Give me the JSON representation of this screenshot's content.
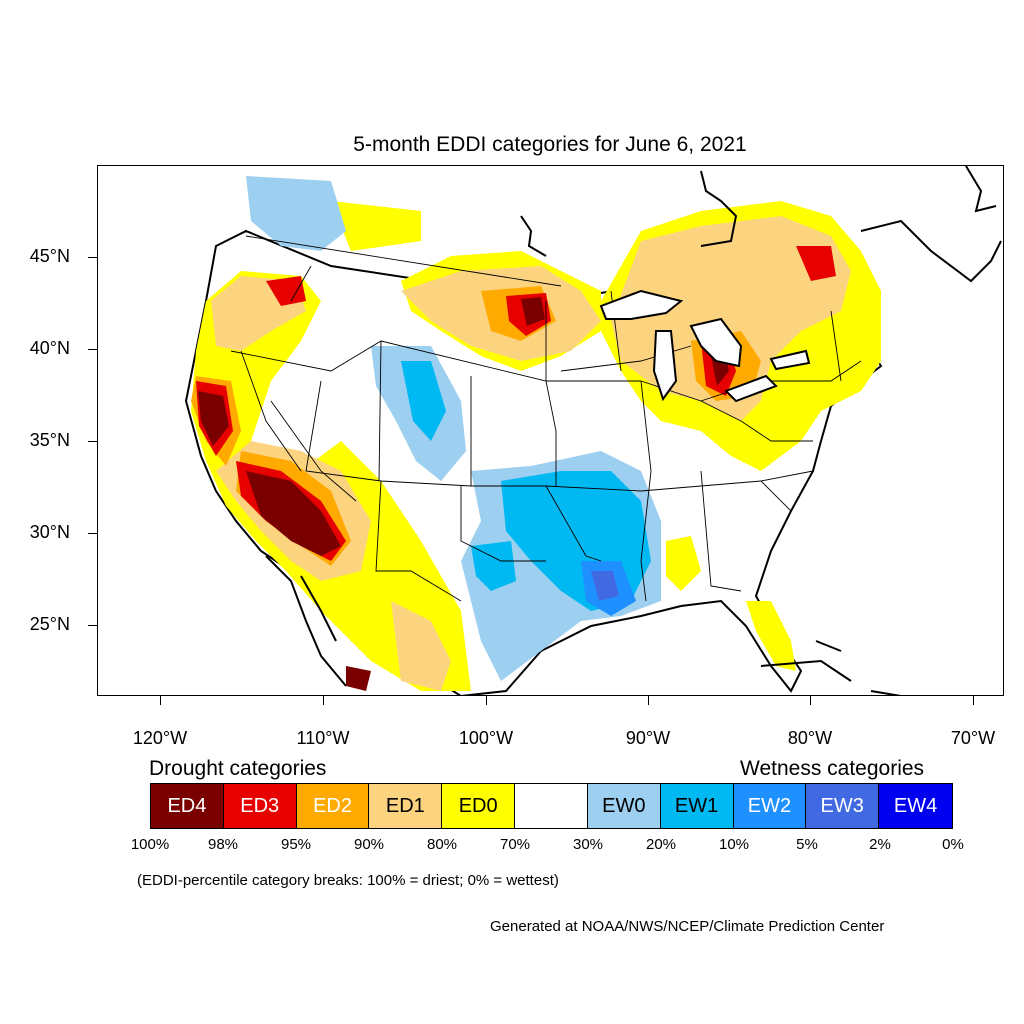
{
  "title": "5-month EDDI categories for June 6, 2021",
  "lat_labels": [
    "45°N",
    "40°N",
    "35°N",
    "30°N",
    "25°N"
  ],
  "lon_labels": [
    "120°W",
    "110°W",
    "100°W",
    "90°W",
    "80°W",
    "70°W"
  ],
  "legend": {
    "drought_heading": "Drought categories",
    "wetness_heading": "Wetness categories",
    "categories": [
      {
        "label": "ED4",
        "color": "#7a0000",
        "text_color": "#ffffff"
      },
      {
        "label": "ED3",
        "color": "#e60000",
        "text_color": "#ffffff"
      },
      {
        "label": "ED2",
        "color": "#ffaa00",
        "text_color": "#ffffff"
      },
      {
        "label": "ED1",
        "color": "#fcd37f",
        "text_color": "#000000"
      },
      {
        "label": "ED0",
        "color": "#ffff00",
        "text_color": "#000000"
      },
      {
        "label": "",
        "color": "#ffffff",
        "text_color": "#000000"
      },
      {
        "label": "EW0",
        "color": "#9ccff0",
        "text_color": "#000000"
      },
      {
        "label": "EW1",
        "color": "#00b8f2",
        "text_color": "#000000"
      },
      {
        "label": "EW2",
        "color": "#1e90ff",
        "text_color": "#ffffff"
      },
      {
        "label": "EW3",
        "color": "#4169e1",
        "text_color": "#ffffff"
      },
      {
        "label": "EW4",
        "color": "#0000f0",
        "text_color": "#ffffff"
      }
    ],
    "percentiles": [
      "100%",
      "98%",
      "95%",
      "90%",
      "80%",
      "70%",
      "30%",
      "20%",
      "10%",
      "5%",
      "2%",
      "0%"
    ]
  },
  "note": "(EDDI-percentile category breaks: 100% = driest; 0% = wettest)",
  "credit": "Generated at NOAA/NWS/NCEP/Climate Prediction Center"
}
